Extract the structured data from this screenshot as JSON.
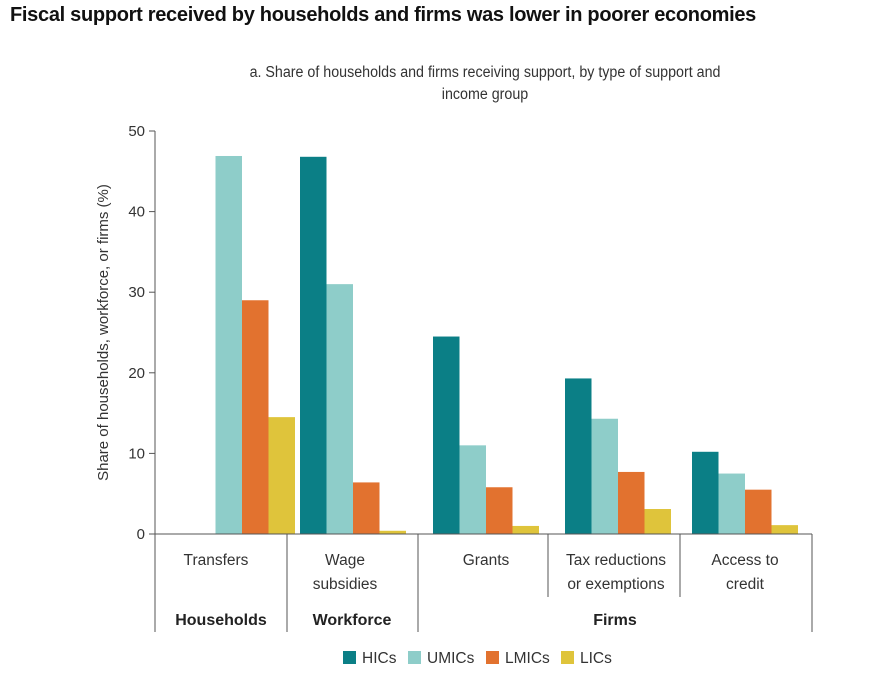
{
  "title": "Fiscal support received by households and firms was lower in poorer economies",
  "subtitle_line1": "a. Share of households and firms receiving support, by type of support and",
  "subtitle_line2": "income group",
  "chart_data": {
    "type": "bar",
    "ylabel": "Share of households, workforce, or firms (%)",
    "ylim": [
      0,
      50
    ],
    "yticks": [
      0,
      10,
      20,
      30,
      40,
      50
    ],
    "categories": [
      "Transfers",
      "Wage subsidies",
      "Grants",
      "Tax reductions or exemptions",
      "Access to credit"
    ],
    "category_label_lines": [
      [
        "Transfers"
      ],
      [
        "Wage",
        "subsidies"
      ],
      [
        "Grants"
      ],
      [
        "Tax reductions",
        "or exemptions"
      ],
      [
        "Access to",
        "credit"
      ]
    ],
    "groups": [
      {
        "label": "Households",
        "categories": [
          "Transfers"
        ]
      },
      {
        "label": "Workforce",
        "categories": [
          "Wage subsidies"
        ]
      },
      {
        "label": "Firms",
        "categories": [
          "Grants",
          "Tax reductions or exemptions",
          "Access to credit"
        ]
      }
    ],
    "series": [
      {
        "name": "HICs",
        "color": "#0b7f86",
        "values": [
          null,
          46.8,
          24.5,
          19.3,
          10.2
        ]
      },
      {
        "name": "UMICs",
        "color": "#8ecdc9",
        "values": [
          46.9,
          31.0,
          11.0,
          14.3,
          7.5
        ]
      },
      {
        "name": "LMICs",
        "color": "#e2722f",
        "values": [
          29.0,
          6.4,
          5.8,
          7.7,
          5.5
        ]
      },
      {
        "name": "LICs",
        "color": "#dfc43b",
        "values": [
          14.5,
          0.4,
          1.0,
          3.1,
          1.1
        ]
      }
    ],
    "legend_position": "bottom-center",
    "grid": false
  }
}
